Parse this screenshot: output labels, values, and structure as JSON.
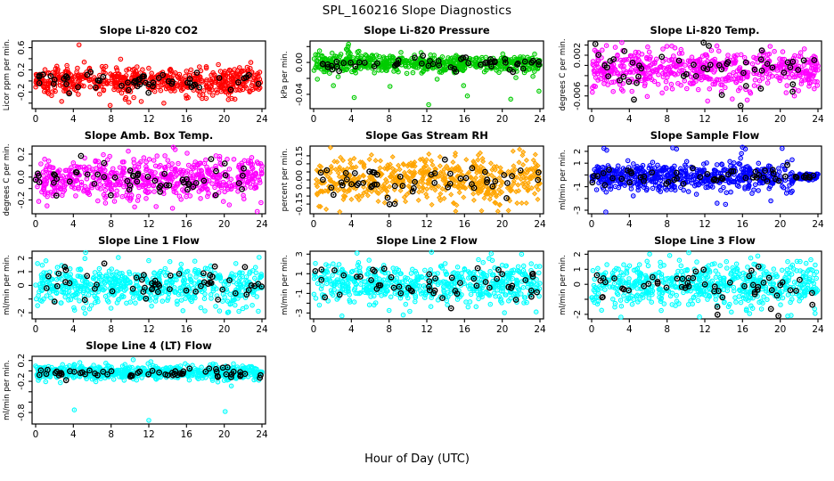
{
  "title": "SPL_160216  Slope Diagnostics",
  "xlabel": "Hour of Day (UTC)",
  "x_axis": {
    "min": 0,
    "max": 24,
    "ticks": [
      0,
      4,
      8,
      12,
      16,
      20,
      24
    ]
  },
  "overlay_style": {
    "color": "#000000",
    "meaning": "black overlay points"
  },
  "chart_data": [
    {
      "type": "scatter",
      "title": "Slope Li-820 CO2",
      "ylabel": "Licor ppm per min.",
      "marker": "open-circle-dot",
      "marker_color": "#ff0000",
      "ylim": [
        -0.5,
        0.72
      ],
      "yticks": [
        {
          "v": 0.6,
          "label": "0.6"
        },
        {
          "v": 0.4,
          "label": null
        },
        {
          "v": 0.2,
          "label": "0.2"
        },
        {
          "v": 0.0,
          "label": null
        },
        {
          "v": -0.2,
          "label": "-0.2"
        },
        {
          "v": -0.4,
          "label": null
        }
      ],
      "n_points": 560,
      "y_center": 0.0,
      "y_spread": 0.13,
      "outliers": [
        [
          4.6,
          0.65
        ],
        [
          7.9,
          -0.44
        ],
        [
          9.5,
          -0.33
        ],
        [
          11.2,
          -0.37
        ],
        [
          13.6,
          -0.4
        ],
        [
          10.4,
          -0.3
        ],
        [
          16.0,
          -0.31
        ]
      ],
      "overlay": {
        "n": 55,
        "y_center": -0.02,
        "y_spread": 0.09,
        "outliers": []
      },
      "taper_after_x": null
    },
    {
      "type": "scatter",
      "title": "Slope Li-820 Pressure",
      "ylabel": "kPa per min.",
      "marker": "open-circle-dot",
      "marker_color": "#00cc00",
      "ylim": [
        -0.058,
        0.027
      ],
      "yticks": [
        {
          "v": 0.02,
          "label": null
        },
        {
          "v": 0.0,
          "label": "0.00"
        },
        {
          "v": -0.02,
          "label": null
        },
        {
          "v": -0.04,
          "label": "-0.04"
        }
      ],
      "n_points": 560,
      "y_center": -0.001,
      "y_spread": 0.0055,
      "outliers": [
        [
          0.4,
          -0.021
        ],
        [
          2.1,
          -0.029
        ],
        [
          2.6,
          -0.018
        ],
        [
          3.6,
          0.016
        ],
        [
          3.65,
          0.02
        ],
        [
          3.7,
          0.023
        ],
        [
          3.75,
          0.013
        ],
        [
          4.3,
          -0.044
        ],
        [
          8.1,
          -0.03
        ],
        [
          12.2,
          -0.053
        ],
        [
          13.1,
          -0.021
        ],
        [
          15.9,
          -0.029
        ],
        [
          16.3,
          -0.042
        ],
        [
          20.9,
          -0.046
        ],
        [
          23.9,
          -0.036
        ]
      ],
      "overlay": {
        "n": 55,
        "y_center": -0.001,
        "y_spread": 0.0045,
        "outliers": []
      },
      "taper_after_x": null
    },
    {
      "type": "scatter",
      "title": "Slope Li-820 Temp.",
      "ylabel": "degrees C per min.",
      "marker": "open-circle-dot",
      "marker_color": "#ff00ff",
      "ylim": [
        -0.0085,
        0.0048
      ],
      "yticks": [
        {
          "v": 0.004,
          "label": null
        },
        {
          "v": 0.002,
          "label": "0.002"
        },
        {
          "v": 0.0,
          "label": null
        },
        {
          "v": -0.002,
          "label": null
        },
        {
          "v": -0.004,
          "label": null
        },
        {
          "v": -0.006,
          "label": "-0.006"
        }
      ],
      "n_points": 560,
      "y_center": -0.0008,
      "y_spread": 0.002,
      "outliers": [
        [
          3.2,
          0.0045
        ],
        [
          8.5,
          0.0038
        ],
        [
          12.3,
          -0.007
        ],
        [
          21.5,
          -0.006
        ],
        [
          16.5,
          -0.0068
        ]
      ],
      "overlay": {
        "n": 50,
        "y_center": -0.0008,
        "y_spread": 0.0022,
        "outliers": [
          [
            0.4,
            0.0042
          ],
          [
            15.8,
            -0.0079
          ],
          [
            13.8,
            -0.0058
          ]
        ]
      },
      "taper_after_x": null
    },
    {
      "type": "scatter",
      "title": "Slope Amb. Box Temp.",
      "ylabel": "degrees C per min.",
      "marker": "open-circle-dot",
      "marker_color": "#ff00ff",
      "ylim": [
        -0.32,
        0.27
      ],
      "yticks": [
        {
          "v": 0.2,
          "label": "0.2"
        },
        {
          "v": 0.1,
          "label": null
        },
        {
          "v": 0.0,
          "label": "0.0"
        },
        {
          "v": -0.1,
          "label": null
        },
        {
          "v": -0.2,
          "label": "-0.2"
        }
      ],
      "n_points": 580,
      "y_center": -0.02,
      "y_spread": 0.09,
      "outliers": [
        [
          14.6,
          0.26
        ],
        [
          14.8,
          0.24
        ],
        [
          23.5,
          -0.3
        ],
        [
          10.5,
          -0.26
        ]
      ],
      "overlay": {
        "n": 55,
        "y_center": -0.01,
        "y_spread": 0.07,
        "outliers": []
      },
      "taper_after_x": null
    },
    {
      "type": "scatter",
      "title": "Slope Gas Stream RH",
      "ylabel": "percent per min.",
      "marker": "open-diamond-dot",
      "marker_color": "#ffa500",
      "ylim": [
        -0.21,
        0.21
      ],
      "yticks": [
        {
          "v": 0.15,
          "label": "0.15"
        },
        {
          "v": 0.1,
          "label": null
        },
        {
          "v": 0.05,
          "label": null
        },
        {
          "v": 0.0,
          "label": "0.00"
        },
        {
          "v": -0.05,
          "label": null
        },
        {
          "v": -0.1,
          "label": null
        },
        {
          "v": -0.15,
          "label": "-0.15"
        }
      ],
      "n_points": 560,
      "y_center": 0.0,
      "y_spread": 0.075,
      "outliers": [],
      "overlay": {
        "n": 55,
        "y_center": -0.01,
        "y_spread": 0.06,
        "outliers": []
      },
      "taper_after_x": null
    },
    {
      "type": "scatter",
      "title": "Slope Sample Flow",
      "ylabel": "ml/min per min.",
      "marker": "open-circle-dot",
      "marker_color": "#0000ff",
      "ylim": [
        -3.3,
        2.45
      ],
      "yticks": [
        {
          "v": 2,
          "label": "2"
        },
        {
          "v": 1,
          "label": "1"
        },
        {
          "v": 0,
          "label": null
        },
        {
          "v": -1,
          "label": "-1"
        },
        {
          "v": -2,
          "label": null
        },
        {
          "v": -3,
          "label": "-3"
        }
      ],
      "n_points": 620,
      "y_center": -0.15,
      "y_spread": 0.55,
      "outliers": [
        [
          1.5,
          -3.15
        ],
        [
          1.3,
          2.25
        ],
        [
          1.6,
          2.1
        ],
        [
          8.6,
          2.3
        ],
        [
          9.0,
          2.2
        ],
        [
          16.0,
          2.35
        ],
        [
          16.3,
          2.2
        ],
        [
          20.2,
          2.25
        ],
        [
          13.3,
          -2.4
        ],
        [
          14.2,
          -2.5
        ],
        [
          19.0,
          -2.2
        ]
      ],
      "overlay": {
        "n": 55,
        "y_center": -0.15,
        "y_spread": 0.4,
        "outliers": []
      },
      "taper_after_x": 21.5
    },
    {
      "type": "scatter",
      "title": "Slope Line 1 Flow",
      "ylabel": "ml/min per min.",
      "marker": "open-circle-dot",
      "marker_color": "#00ffff",
      "ylim": [
        -2.45,
        2.5
      ],
      "yticks": [
        {
          "v": 2,
          "label": "2"
        },
        {
          "v": 1,
          "label": "1"
        },
        {
          "v": 0,
          "label": "0"
        },
        {
          "v": -1,
          "label": null
        },
        {
          "v": -2,
          "label": "-2"
        }
      ],
      "n_points": 580,
      "y_center": 0.0,
      "y_spread": 0.75,
      "outliers": [
        [
          5.3,
          2.4
        ],
        [
          23.7,
          2.05
        ],
        [
          0.2,
          1.6
        ]
      ],
      "overlay": {
        "n": 55,
        "y_center": 0.0,
        "y_spread": 0.55,
        "outliers": []
      },
      "taper_after_x": null
    },
    {
      "type": "scatter",
      "title": "Slope Line 2 Flow",
      "ylabel": "ml/min per min.",
      "marker": "open-circle-dot",
      "marker_color": "#00ffff",
      "ylim": [
        -3.6,
        3.3
      ],
      "yticks": [
        {
          "v": 3,
          "label": "3"
        },
        {
          "v": 2,
          "label": null
        },
        {
          "v": 1,
          "label": "1"
        },
        {
          "v": 0,
          "label": null
        },
        {
          "v": -1,
          "label": "-1"
        },
        {
          "v": -2,
          "label": null
        },
        {
          "v": -3,
          "label": "-3"
        }
      ],
      "n_points": 580,
      "y_center": 0.0,
      "y_spread": 1.0,
      "outliers": [
        [
          3.0,
          -3.3
        ],
        [
          9.5,
          -3.2
        ],
        [
          4.6,
          3.1
        ],
        [
          12.5,
          3.2
        ]
      ],
      "overlay": {
        "n": 55,
        "y_center": 0.0,
        "y_spread": 0.9,
        "outliers": []
      },
      "taper_after_x": null
    },
    {
      "type": "scatter",
      "title": "Slope Line 3 Flow",
      "ylabel": "ml/min per min.",
      "marker": "open-circle-dot",
      "marker_color": "#00ffff",
      "ylim": [
        -2.3,
        2.2
      ],
      "yticks": [
        {
          "v": 2,
          "label": "2"
        },
        {
          "v": 1,
          "label": "1"
        },
        {
          "v": 0,
          "label": "0"
        },
        {
          "v": -1,
          "label": null
        },
        {
          "v": -2,
          "label": "-2"
        }
      ],
      "n_points": 580,
      "y_center": 0.0,
      "y_spread": 0.75,
      "outliers": [
        [
          10.3,
          2.1
        ]
      ],
      "overlay": {
        "n": 55,
        "y_center": 0.0,
        "y_spread": 0.65,
        "outliers": [
          [
            19.8,
            -2.1
          ]
        ]
      },
      "taper_after_x": null
    },
    {
      "type": "scatter",
      "title": "Slope Line 4 (LT) Flow",
      "ylabel": "ml/min per min.",
      "marker": "open-circle-dot",
      "marker_color": "#00ffff",
      "ylim": [
        -1.02,
        0.28
      ],
      "yticks": [
        {
          "v": 0.2,
          "label": "0.2"
        },
        {
          "v": 0.0,
          "label": null
        },
        {
          "v": -0.2,
          "label": "-0.2"
        },
        {
          "v": -0.4,
          "label": null
        },
        {
          "v": -0.6,
          "label": null
        },
        {
          "v": -0.8,
          "label": "-0.8"
        }
      ],
      "n_points": 580,
      "y_center": -0.03,
      "y_spread": 0.07,
      "outliers": [
        [
          4.1,
          -0.75
        ],
        [
          12.0,
          -0.95
        ],
        [
          20.1,
          -0.78
        ]
      ],
      "overlay": {
        "n": 60,
        "y_center": -0.05,
        "y_spread": 0.05,
        "outliers": []
      },
      "taper_after_x": null
    }
  ]
}
